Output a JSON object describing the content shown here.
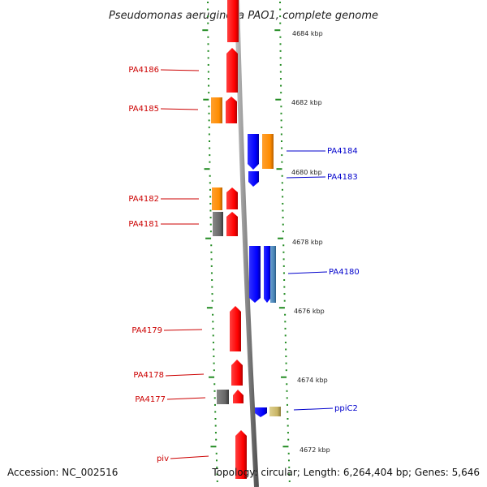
{
  "title": "Pseudomonas aeruginosa PAO1, complete genome",
  "footer": {
    "accession": "Accession: NC_002516",
    "topology": "Topology: circular; Length: 6,264,404 bp; Genes: 5,646"
  },
  "colors": {
    "forward_gene": "#ff0000",
    "reverse_gene": "#0000ff",
    "forward_label": "#cc0000",
    "reverse_label": "#0000cc",
    "orange_feature": "#ff8c00",
    "gray_feature": "#666666",
    "khaki_feature": "#c8b464",
    "steel_feature": "#4682b4",
    "backbone": "#888888",
    "tick": "#228b22"
  },
  "kbp_labels": [
    "4684 kbp",
    "4682 kbp",
    "4680 kbp",
    "4678 kbp",
    "4676 kbp",
    "4674 kbp",
    "4672 kbp"
  ],
  "gene_labels_left": [
    "PA4186",
    "PA4185",
    "PA4182",
    "PA4181",
    "PA4179",
    "PA4178",
    "PA4177",
    "piv"
  ],
  "gene_labels_right": [
    "PA4184",
    "PA4183",
    "PA4180",
    "ppiC2"
  ]
}
